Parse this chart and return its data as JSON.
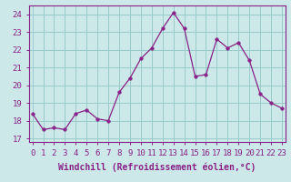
{
  "x": [
    0,
    1,
    2,
    3,
    4,
    5,
    6,
    7,
    8,
    9,
    10,
    11,
    12,
    13,
    14,
    15,
    16,
    17,
    18,
    19,
    20,
    21,
    22,
    23
  ],
  "y": [
    18.4,
    17.5,
    17.6,
    17.5,
    18.4,
    18.6,
    18.1,
    18.0,
    19.6,
    20.4,
    21.5,
    22.1,
    23.2,
    24.1,
    23.2,
    20.5,
    20.6,
    22.6,
    22.1,
    22.4,
    21.4,
    19.5,
    19.0,
    18.7
  ],
  "line_color": "#882288",
  "marker": "o",
  "marker_size": 2.5,
  "bg_color": "#cce8e8",
  "grid_color": "#99cccc",
  "xlabel": "Windchill (Refroidissement éolien,°C)",
  "xlabel_fontsize": 7,
  "tick_fontsize": 6.5,
  "ylim": [
    16.8,
    24.5
  ],
  "yticks": [
    17,
    18,
    19,
    20,
    21,
    22,
    23,
    24
  ],
  "xticks": [
    0,
    1,
    2,
    3,
    4,
    5,
    6,
    7,
    8,
    9,
    10,
    11,
    12,
    13,
    14,
    15,
    16,
    17,
    18,
    19,
    20,
    21,
    22,
    23
  ],
  "xlim": [
    -0.3,
    23.3
  ]
}
